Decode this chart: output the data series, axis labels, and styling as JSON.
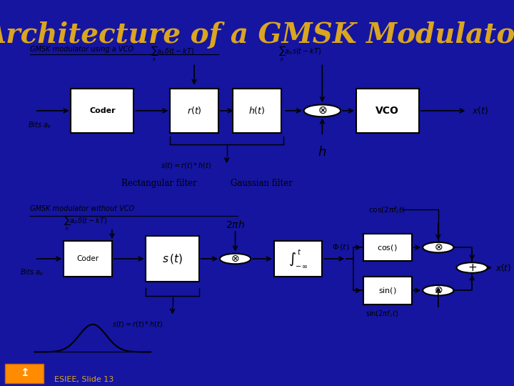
{
  "title": "Architecture of a GMSK Modulator",
  "title_color": "#DAA520",
  "bg_color": "#1515A0",
  "title_fontsize": 28,
  "top_panel_bg": "#C8EEC8",
  "bottom_panel_bg": "#FFFFCC",
  "top_label": "GMSK modulator using a VCO",
  "bottom_label": "GMSK modulator without VCO",
  "footer_text": "ESIEE, Slide 13",
  "footer_color": "#DAA520",
  "footer_bg": "#1515A0"
}
